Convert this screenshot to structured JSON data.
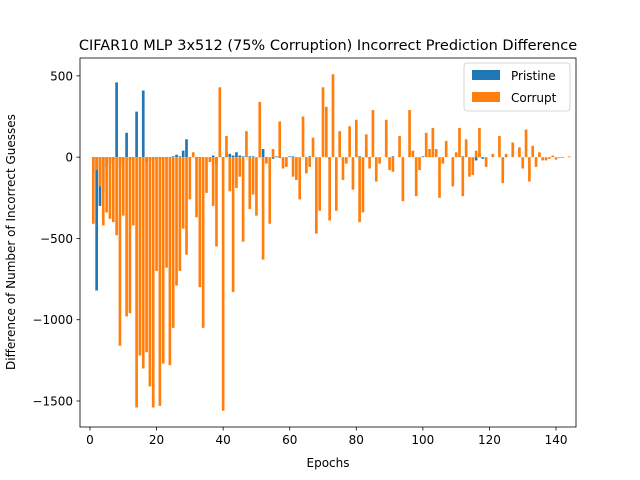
{
  "chart_data": {
    "type": "bar",
    "title": "CIFAR10 MLP 3x512 (75% Corruption) Incorrect Prediction Difference",
    "xlabel": "Epochs",
    "ylabel": "Difference of Number of Incorrect Guesses",
    "xlim": [
      -3,
      146
    ],
    "ylim": [
      -1660,
      610
    ],
    "xticks": [
      0,
      20,
      40,
      60,
      80,
      100,
      120,
      140
    ],
    "yticks": [
      -1500,
      -1000,
      -500,
      0,
      500
    ],
    "ytick_labels": [
      "−1500",
      "−1000",
      "−500",
      "0",
      "500"
    ],
    "legend_position": "top-right",
    "grid": false,
    "series": [
      {
        "name": "Pristine",
        "color": "#1f77b4",
        "values": [
          -90,
          -820,
          -300,
          -210,
          -60,
          -40,
          -20,
          460,
          -60,
          -20,
          150,
          -20,
          -10,
          280,
          -10,
          410,
          -30,
          -20,
          -20,
          -10,
          -20,
          -10,
          -10,
          -5,
          5,
          15,
          5,
          40,
          110,
          -5,
          5,
          -10,
          -5,
          -5,
          0,
          -5,
          10,
          -40,
          20,
          -10,
          30,
          20,
          10,
          30,
          10,
          5,
          5,
          5,
          5,
          0,
          5,
          50,
          -5,
          0,
          -10,
          5,
          -5,
          0,
          0,
          5,
          5,
          0,
          0,
          0,
          0,
          5,
          0,
          0,
          0,
          0,
          5,
          -20,
          0,
          0,
          0,
          0,
          0,
          0,
          0,
          0,
          5,
          0,
          50,
          -5,
          0,
          0,
          0,
          0,
          0,
          0,
          5,
          0,
          0,
          0,
          0,
          0,
          0,
          0,
          0,
          5,
          0,
          0,
          0,
          0,
          0,
          0,
          0,
          0,
          0,
          0,
          0,
          5,
          0,
          0,
          0,
          -20,
          20,
          -10,
          0,
          0,
          0,
          0,
          0,
          0,
          5,
          0,
          0,
          0,
          0,
          0,
          0,
          0,
          0,
          0,
          0,
          0,
          0,
          0,
          0,
          0
        ]
      },
      {
        "name": "Corrupt",
        "color": "#ff7f0e",
        "values": [
          -410,
          -80,
          -180,
          -420,
          -340,
          -380,
          -400,
          -480,
          -1160,
          -360,
          -980,
          -960,
          -420,
          -1540,
          -1220,
          -1300,
          -1200,
          -1410,
          -1540,
          -700,
          -1530,
          -1270,
          -680,
          -1280,
          -1050,
          -790,
          -700,
          -440,
          -600,
          -260,
          30,
          -370,
          -800,
          -1050,
          -220,
          -30,
          -300,
          -550,
          430,
          -1560,
          130,
          -210,
          -830,
          -190,
          -120,
          -520,
          160,
          -320,
          -230,
          -360,
          340,
          -630,
          -40,
          -410,
          50,
          0,
          220,
          -70,
          -60,
          0,
          -120,
          -140,
          -260,
          250,
          -100,
          -60,
          120,
          -470,
          -330,
          430,
          310,
          -390,
          510,
          -330,
          160,
          -140,
          -40,
          190,
          -200,
          230,
          -400,
          -340,
          140,
          -70,
          290,
          -150,
          -40,
          0,
          230,
          -80,
          -90,
          0,
          130,
          -270,
          0,
          290,
          40,
          -240,
          -80,
          0,
          150,
          50,
          180,
          50,
          -250,
          -40,
          100,
          0,
          -180,
          30,
          180,
          -240,
          110,
          -120,
          -110,
          40,
          180,
          0,
          -60,
          0,
          20,
          0,
          130,
          -160,
          20,
          0,
          90,
          0,
          60,
          -70,
          170,
          -150,
          70,
          -60,
          30,
          -20,
          -20,
          -10,
          10,
          -15,
          -5,
          -5,
          0,
          5
        ]
      }
    ]
  }
}
